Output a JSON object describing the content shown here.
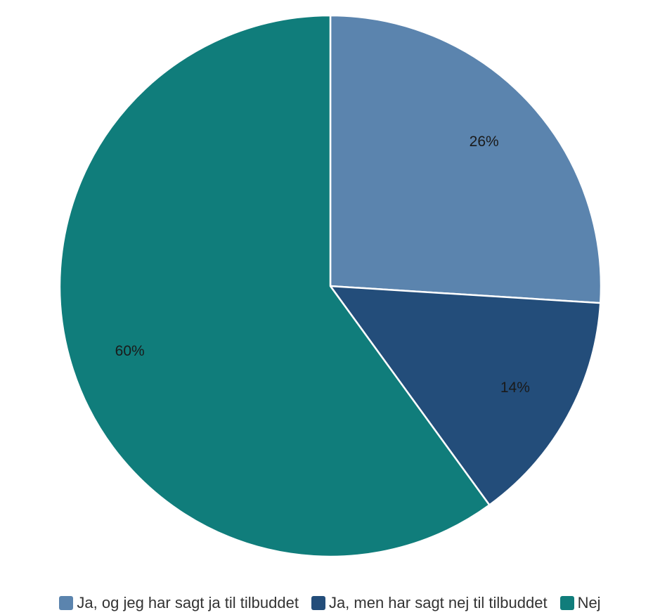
{
  "chart_data": {
    "type": "pie",
    "title": "",
    "start_angle": "top",
    "direction": "clockwise",
    "slices": [
      {
        "label": "Ja, og jeg har sagt ja til tilbuddet",
        "value": 26,
        "value_label": "26%",
        "color": "#5b84ae"
      },
      {
        "label": "Ja, men har sagt nej til tilbuddet",
        "value": 14,
        "value_label": "14%",
        "color": "#234d7a"
      },
      {
        "label": "Nej",
        "value": 60,
        "value_label": "60%",
        "color": "#107d7b"
      }
    ],
    "legend_position": "bottom"
  }
}
